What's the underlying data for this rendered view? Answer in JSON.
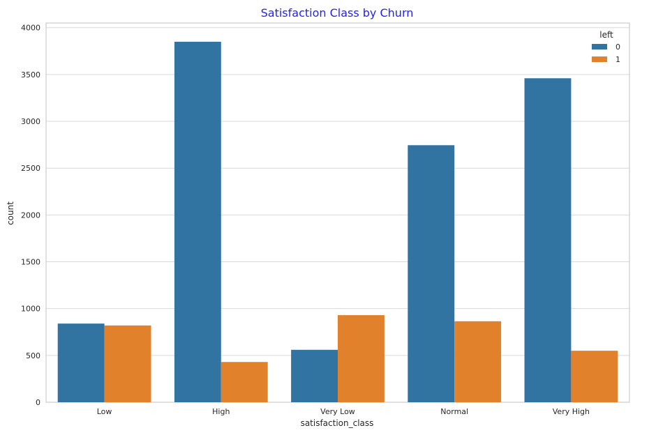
{
  "chart_data": {
    "type": "bar",
    "title": "Satisfaction Class by Churn",
    "title_color": "#1f1fff",
    "xlabel": "satisfaction_class",
    "ylabel": "count",
    "categories": [
      "Low",
      "High",
      "Very Low",
      "Normal",
      "Very High"
    ],
    "ylim": [
      0,
      4050
    ],
    "yticks": [
      0,
      500,
      1000,
      1500,
      2000,
      2500,
      3000,
      3500,
      4000
    ],
    "grid": true,
    "legend": {
      "title": "left",
      "position": "top-right"
    },
    "series": [
      {
        "name": "0",
        "color": "#3274a1",
        "values": [
          840,
          3850,
          560,
          2745,
          3460
        ]
      },
      {
        "name": "1",
        "color": "#e1812c",
        "values": [
          820,
          430,
          930,
          865,
          550
        ]
      }
    ]
  }
}
